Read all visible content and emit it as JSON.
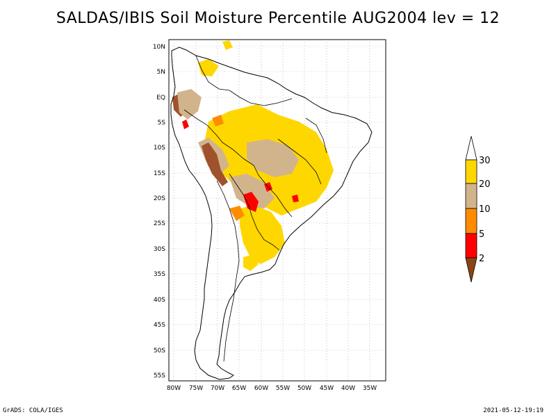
{
  "title": "SALDAS/IBIS Soil Moisture Percentile AUG2004 lev = 12",
  "footer": {
    "left": "GrADS: COLA/IGES",
    "right": "2021-05-12-19:19"
  },
  "map": {
    "lat_labels": [
      "10N",
      "5N",
      "EQ",
      "5S",
      "10S",
      "15S",
      "20S",
      "25S",
      "30S",
      "35S",
      "40S",
      "45S",
      "50S",
      "55S"
    ],
    "lon_labels": [
      "80W",
      "75W",
      "70W",
      "65W",
      "60W",
      "55W",
      "50W",
      "45W",
      "40W",
      "35W"
    ],
    "lon_range": [
      -80,
      -33
    ],
    "lat_range": [
      -56,
      12
    ]
  },
  "colorbar": {
    "labels": [
      "2",
      "5",
      "10",
      "20",
      "30"
    ],
    "colors": [
      "#8b4513",
      "#ff0000",
      "#ff8c00",
      "#d2b48c",
      "#ffd700",
      "#ffffff"
    ]
  }
}
